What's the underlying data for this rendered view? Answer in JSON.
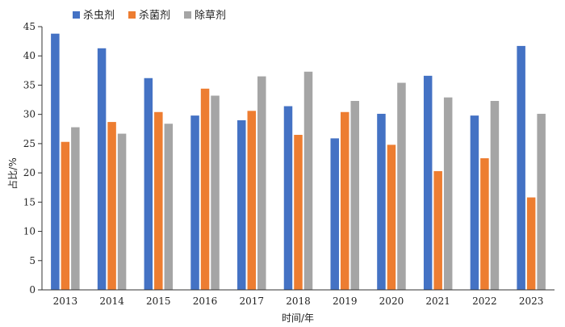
{
  "chart_data": {
    "type": "bar",
    "categories": [
      "2013",
      "2014",
      "2015",
      "2016",
      "2017",
      "2018",
      "2019",
      "2020",
      "2021",
      "2022",
      "2023"
    ],
    "series": [
      {
        "name": "杀虫剂",
        "color": "#4472C4",
        "values": [
          43.8,
          41.3,
          36.2,
          29.8,
          29.0,
          31.4,
          25.9,
          30.1,
          36.6,
          29.8,
          41.7
        ]
      },
      {
        "name": "杀菌剂",
        "color": "#ED7D31",
        "values": [
          25.3,
          28.7,
          30.4,
          34.4,
          30.6,
          26.5,
          30.4,
          24.8,
          20.3,
          22.5,
          15.8
        ]
      },
      {
        "name": "除草剂",
        "color": "#A5A5A5",
        "values": [
          27.8,
          26.7,
          28.4,
          33.2,
          36.5,
          37.3,
          32.3,
          35.4,
          32.9,
          32.3,
          30.1
        ]
      }
    ],
    "xlabel": "时间/年",
    "ylabel": "占比/%",
    "ylim": [
      0,
      45
    ],
    "yticks": [
      "0",
      "5",
      "10",
      "15",
      "20",
      "25",
      "30",
      "35",
      "40",
      "45"
    ],
    "grid": false,
    "legend_position": "top-left"
  }
}
